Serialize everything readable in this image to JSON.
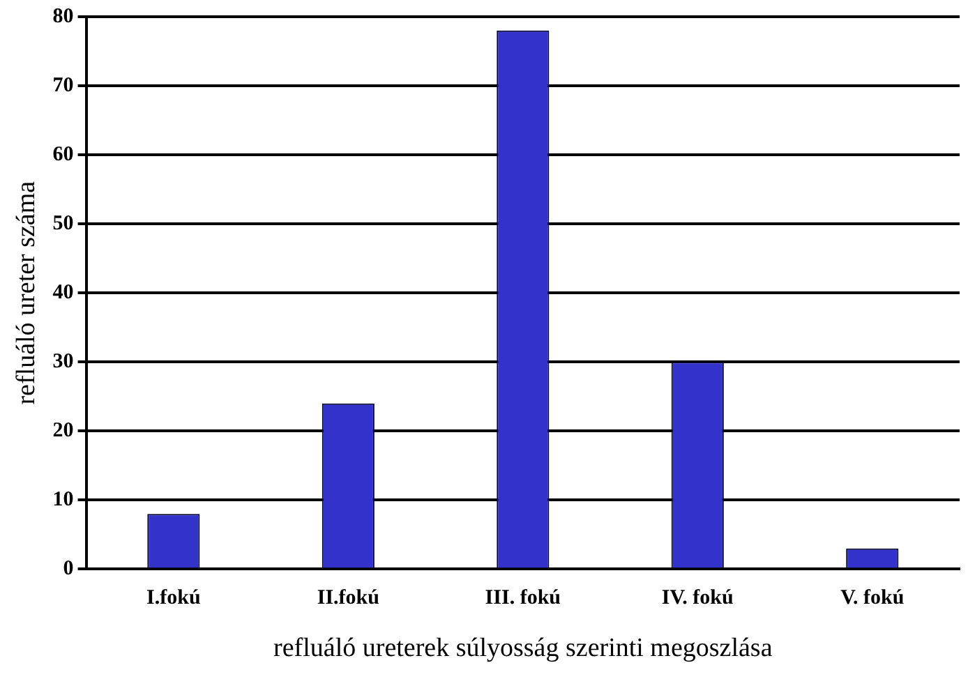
{
  "chart_data": {
    "type": "bar",
    "categories": [
      "I.fokú",
      "II.fokú",
      "III. fokú",
      "IV. fokú",
      "V. fokú"
    ],
    "series": [
      {
        "color": "#3333cc",
        "values": [
          8,
          24,
          78,
          30,
          3
        ]
      }
    ],
    "xlabel": "refluáló ureterek súlyosság szerinti megoszlása",
    "ylabel": "refluáló ureter száma",
    "ylim": [
      0,
      80
    ],
    "yticks": [
      0,
      10,
      20,
      30,
      40,
      50,
      60,
      70,
      80
    ],
    "grid": "y",
    "legend": false
  }
}
